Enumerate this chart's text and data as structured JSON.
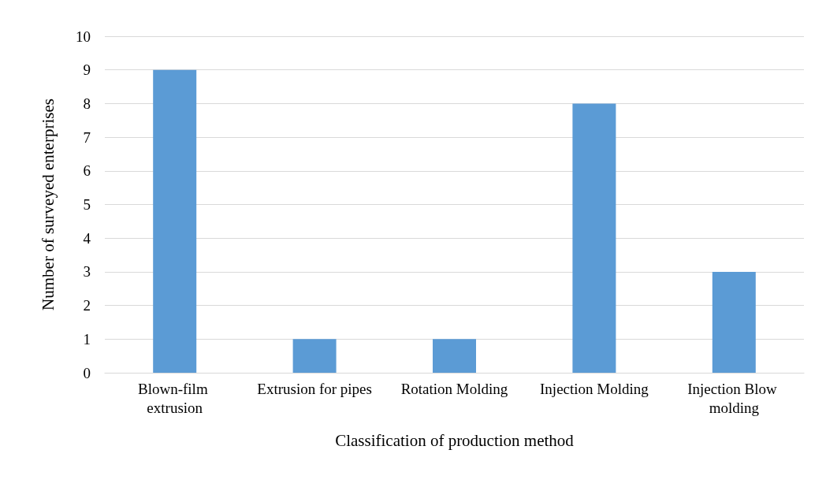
{
  "chart_data": {
    "type": "bar",
    "xlabel": "Classification of production method",
    "ylabel": "Number of surveyed enterprises",
    "categories": [
      "Blown-film extrusion",
      "Extrusion for pipes",
      "Rotation Molding",
      "Injection Molding",
      "Injection Blow molding"
    ],
    "values": [
      9,
      1,
      1,
      8,
      3
    ],
    "color": "#5b9bd5",
    "ylim": [
      0,
      10
    ],
    "yticks": [
      0,
      1,
      2,
      3,
      4,
      5,
      6,
      7,
      8,
      9,
      10
    ],
    "grid": "y"
  }
}
